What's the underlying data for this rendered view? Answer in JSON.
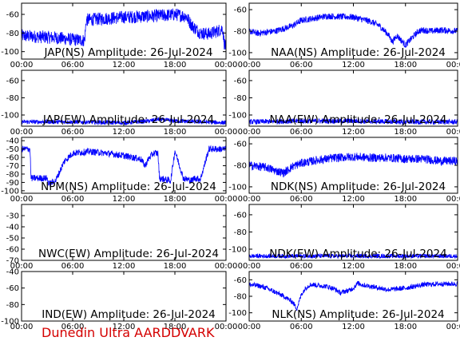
{
  "footer": "Dunedin Ultra AARDDVARK",
  "colors": {
    "trace": "#0000ff",
    "axes": "#000000",
    "footer": "#d40000"
  },
  "chart_data": [
    {
      "type": "line",
      "title": "JAP(NS) Amplitude: 26-Jul-2024",
      "xlim": [
        0,
        24
      ],
      "xticks": [
        "00:00",
        "06:00",
        "12:00",
        "18:00",
        "00:00"
      ],
      "ylim": [
        -108,
        -48
      ],
      "yticks": [
        -100,
        -80,
        -60
      ],
      "series": [
        {
          "x": [
            0,
            2,
            4,
            6,
            7.4,
            7.6,
            9,
            12,
            15,
            17,
            18,
            19.3,
            20,
            21,
            22,
            23,
            23.6,
            23.8,
            24
          ],
          "y": [
            -83,
            -84,
            -85,
            -87,
            -88,
            -66,
            -65,
            -63,
            -62,
            -61,
            -60,
            -62,
            -72,
            -80,
            -81,
            -78,
            -75,
            -91,
            -96
          ],
          "noise": 7
        }
      ]
    },
    {
      "type": "line",
      "title": "NAA(NS) Amplitude: 26-Jul-2024",
      "xlim": [
        0,
        24
      ],
      "xticks": [
        "00:00",
        "06:00",
        "12:00",
        "18:00",
        "00:00"
      ],
      "ylim": [
        -106,
        -54
      ],
      "yticks": [
        -100,
        -80,
        -60
      ],
      "series": [
        {
          "x": [
            0,
            1,
            3,
            5,
            6,
            9,
            12,
            14,
            15,
            16,
            16.5,
            17,
            18,
            19,
            19.5,
            20,
            21,
            22,
            24
          ],
          "y": [
            -80,
            -82,
            -80,
            -75,
            -70,
            -66,
            -67,
            -71,
            -75,
            -83,
            -90,
            -84,
            -93,
            -84,
            -80,
            -79,
            -80,
            -79,
            -80
          ],
          "noise": 3
        }
      ]
    },
    {
      "type": "line",
      "title": "JAP(EW) Amplitude: 26-Jul-2024",
      "xlim": [
        0,
        24
      ],
      "xticks": [
        "00:00",
        "06:00",
        "12:00",
        "18:00",
        "00:00"
      ],
      "ylim": [
        -113,
        -48
      ],
      "yticks": [
        -100,
        -80,
        -60
      ],
      "series": [
        {
          "x": [
            0,
            6,
            12,
            15,
            16,
            18,
            24
          ],
          "y": [
            -108,
            -108,
            -109,
            -107,
            -105,
            -107,
            -109
          ],
          "noise": 2.5
        }
      ]
    },
    {
      "type": "line",
      "title": "NAA(EW) Amplitude: 26-Jul-2024",
      "xlim": [
        0,
        24
      ],
      "xticks": [
        "00:00",
        "06:00",
        "12:00",
        "18:00",
        "00:00"
      ],
      "ylim": [
        -113,
        -48
      ],
      "yticks": [
        -100,
        -80,
        -60
      ],
      "series": [
        {
          "x": [
            0,
            6,
            12,
            18,
            24
          ],
          "y": [
            -108,
            -107,
            -107,
            -108,
            -108
          ],
          "noise": 3
        }
      ]
    },
    {
      "type": "line",
      "title": "NPM(NS) Amplitude: 26-Jul-2024",
      "xlim": [
        0,
        24
      ],
      "xticks": [
        "00:00",
        "06:00",
        "12:00",
        "18:00",
        "00:00"
      ],
      "ylim": [
        -103,
        -36
      ],
      "yticks": [
        -100,
        -90,
        -80,
        -70,
        -60,
        -50,
        -40
      ],
      "series": [
        {
          "x": [
            0,
            1,
            1.1,
            3,
            3.2,
            4,
            5,
            6,
            8,
            10,
            12,
            14,
            14.5,
            15,
            15.5,
            16,
            16.2,
            17.5,
            18,
            19,
            20,
            20.2,
            21,
            22,
            23.5,
            24
          ],
          "y": [
            -50,
            -50,
            -85,
            -85,
            -92,
            -88,
            -65,
            -55,
            -53,
            -55,
            -58,
            -62,
            -70,
            -60,
            -55,
            -55,
            -85,
            -88,
            -52,
            -85,
            -88,
            -85,
            -86,
            -50,
            -50,
            -50
          ],
          "noise": 4
        }
      ]
    },
    {
      "type": "line",
      "title": "NDK(NS) Amplitude: 26-Jul-2024",
      "xlim": [
        0,
        24
      ],
      "xticks": [
        "00:00",
        "06:00",
        "12:00",
        "18:00",
        "00:00"
      ],
      "ylim": [
        -106,
        -54
      ],
      "yticks": [
        -100,
        -80,
        -60
      ],
      "series": [
        {
          "x": [
            0,
            2,
            3,
            4,
            5,
            6,
            8,
            10,
            12,
            14,
            16,
            18,
            20,
            22,
            24
          ],
          "y": [
            -80,
            -82,
            -85,
            -87,
            -81,
            -78,
            -75,
            -73,
            -72,
            -73,
            -73,
            -74,
            -74,
            -76,
            -76
          ],
          "noise": 4
        }
      ]
    },
    {
      "type": "line",
      "title": "NWC(EW) Amplitude: 26-Jul-2024",
      "xlim": [
        0,
        24
      ],
      "xticks": [
        "00:00",
        "06:00",
        "12:00",
        "18:00",
        "00:00"
      ],
      "ylim": [
        -70,
        -20
      ],
      "yticks": [
        -70,
        -60,
        -50,
        -40,
        -30
      ],
      "series": []
    },
    {
      "type": "line",
      "title": "NDK(EW) Amplitude: 26-Jul-2024",
      "xlim": [
        0,
        24
      ],
      "xticks": [
        "00:00",
        "06:00",
        "12:00",
        "18:00",
        "00:00"
      ],
      "ylim": [
        -113,
        -48
      ],
      "yticks": [
        -100,
        -80,
        -60
      ],
      "series": [
        {
          "x": [
            0,
            6,
            12,
            18,
            24
          ],
          "y": [
            -108,
            -108,
            -108,
            -108,
            -108
          ],
          "noise": 2.5
        }
      ]
    },
    {
      "type": "line",
      "title": "IND(EW) Amplitude: 26-Jul-2024",
      "xlim": [
        0,
        24
      ],
      "xticks": [
        "00:00",
        "06:00",
        "12:00",
        "18:00",
        "00:00"
      ],
      "ylim": [
        -100,
        -40
      ],
      "yticks": [
        -100,
        -80,
        -60,
        -40
      ],
      "series": []
    },
    {
      "type": "line",
      "title": "NLK(NS) Amplitude: 26-Jul-2024",
      "xlim": [
        0,
        24
      ],
      "xticks": [
        "00:00",
        "06:00",
        "12:00",
        "18:00",
        "00:00"
      ],
      "ylim": [
        -110,
        -50
      ],
      "yticks": [
        -100,
        -80,
        -60
      ],
      "series": [
        {
          "x": [
            0,
            1,
            2,
            3,
            4,
            5,
            5.5,
            6,
            6.5,
            7,
            7.5,
            8,
            9,
            10,
            10.5,
            11,
            11.5,
            12,
            12.5,
            13,
            14,
            15,
            16,
            18,
            20,
            22,
            24
          ],
          "y": [
            -66,
            -67,
            -70,
            -75,
            -80,
            -87,
            -95,
            -78,
            -70,
            -66,
            -66,
            -67,
            -68,
            -72,
            -76,
            -74,
            -73,
            -70,
            -64,
            -66,
            -68,
            -70,
            -72,
            -70,
            -66,
            -65,
            -65
          ],
          "noise": 3
        }
      ]
    }
  ]
}
